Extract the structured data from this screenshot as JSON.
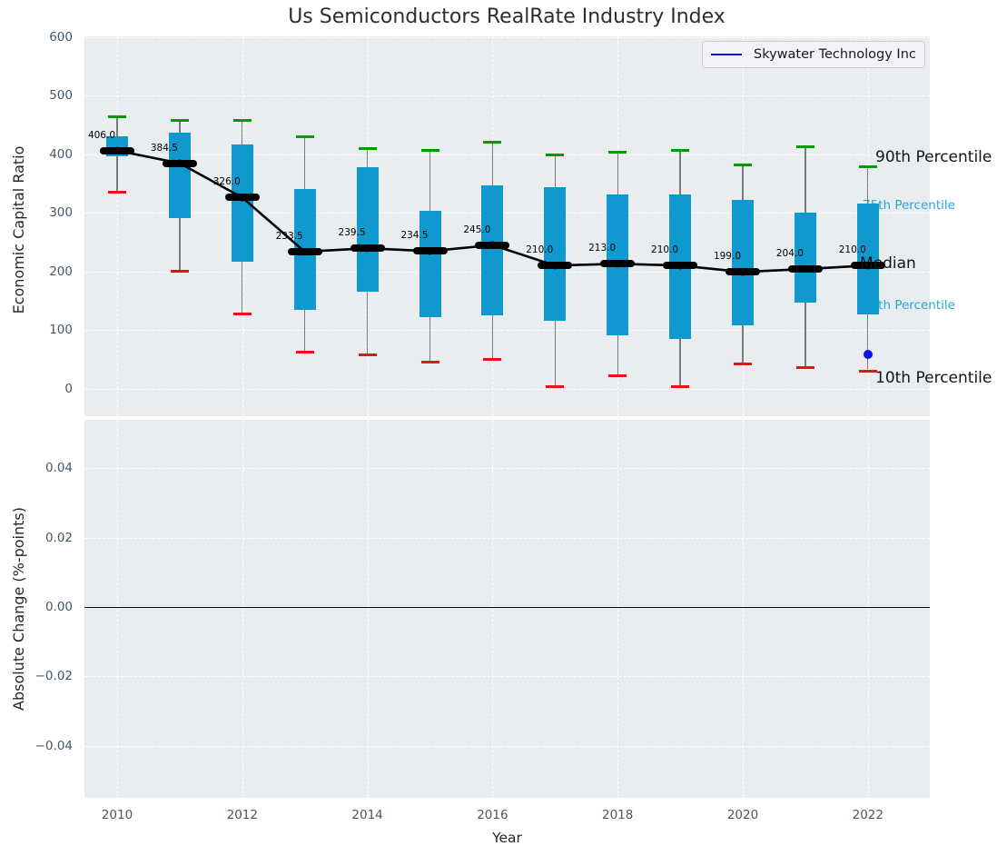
{
  "title": "Us Semiconductors RealRate Industry Index",
  "legend": {
    "label": "Skywater Technology Inc",
    "line_color": "#0f0fe8"
  },
  "axes": {
    "top": {
      "ylabel": "Economic Capital Ratio",
      "yticks": [
        "600",
        "500",
        "400",
        "300",
        "200",
        "100",
        "0"
      ],
      "ytick_values": [
        600,
        500,
        400,
        300,
        200,
        100,
        0
      ]
    },
    "bottom": {
      "ylabel": "Absolute Change (%-points)",
      "yticks": [
        "0.04",
        "0.02",
        "0.00",
        "−0.02",
        "−0.04"
      ],
      "ytick_values": [
        0.04,
        0.02,
        0.0,
        -0.02,
        -0.04
      ]
    },
    "xlabel": "Year",
    "xticks": [
      "2010",
      "2012",
      "2014",
      "2016",
      "2018",
      "2020",
      "2022"
    ],
    "xtick_values": [
      2010,
      2012,
      2014,
      2016,
      2018,
      2020,
      2022
    ]
  },
  "annotations": {
    "p90": "90th Percentile",
    "p75": "75th Percentile",
    "median": "Median",
    "p25": "25th Percentile",
    "p10": "10th Percentile"
  },
  "chart_data": {
    "type": "boxplot",
    "title": "Us Semiconductors RealRate Industry Index",
    "xlabel": "Year",
    "top_panel": {
      "ylabel": "Economic Capital Ratio",
      "ylim": [
        -47,
        601
      ],
      "grid": true
    },
    "bottom_panel": {
      "ylabel": "Absolute Change (%-points)",
      "ylim": [
        -0.055,
        0.054
      ],
      "zero_line": 0.0,
      "grid": true,
      "data": []
    },
    "years": [
      2010,
      2011,
      2012,
      2013,
      2014,
      2015,
      2016,
      2017,
      2018,
      2019,
      2020,
      2021,
      2022
    ],
    "series": [
      {
        "name": "90th Percentile",
        "values": [
          464,
          458,
          458,
          429,
          410,
          406,
          421,
          398,
          403,
          406,
          381,
          412,
          378
        ]
      },
      {
        "name": "75th Percentile",
        "values": [
          431,
          437,
          417,
          340,
          378,
          304,
          347,
          344,
          331,
          332,
          322,
          300,
          315
        ]
      },
      {
        "name": "Median",
        "values": [
          406.0,
          384.5,
          326.0,
          233.5,
          239.5,
          234.5,
          245.0,
          210.0,
          213.0,
          210.0,
          199.0,
          204.0,
          210.0
        ]
      },
      {
        "name": "25th Percentile",
        "values": [
          397,
          291,
          216,
          135,
          165,
          122,
          125,
          115,
          91,
          84,
          108,
          146,
          126
        ]
      },
      {
        "name": "10th Percentile",
        "values": [
          335,
          200,
          127,
          63,
          58,
          46,
          50,
          3,
          22,
          4,
          42,
          36,
          29
        ]
      }
    ],
    "median_labels": [
      "406.0",
      "384.5",
      "326.0",
      "233.5",
      "239.5",
      "234.5",
      "245.0",
      "210.0",
      "213.0",
      "210.0",
      "199.0",
      "204.0",
      "210.0"
    ],
    "skywater_point": {
      "year": 2022,
      "value": 58
    },
    "legend_position": "upper right"
  },
  "colors": {
    "axes_bg": "#e9edf0",
    "grid": "#ffffff",
    "box_fill": "#1099cf",
    "p90_cap": "#009b00",
    "p10_cap": "#e81212",
    "median_line": "#000000",
    "whisker": "#7a7a7a",
    "skywater": "#0f0fe8",
    "tick_label": "#46586c",
    "text": "#262626",
    "percentile_label_cyan": "#25a6da"
  }
}
